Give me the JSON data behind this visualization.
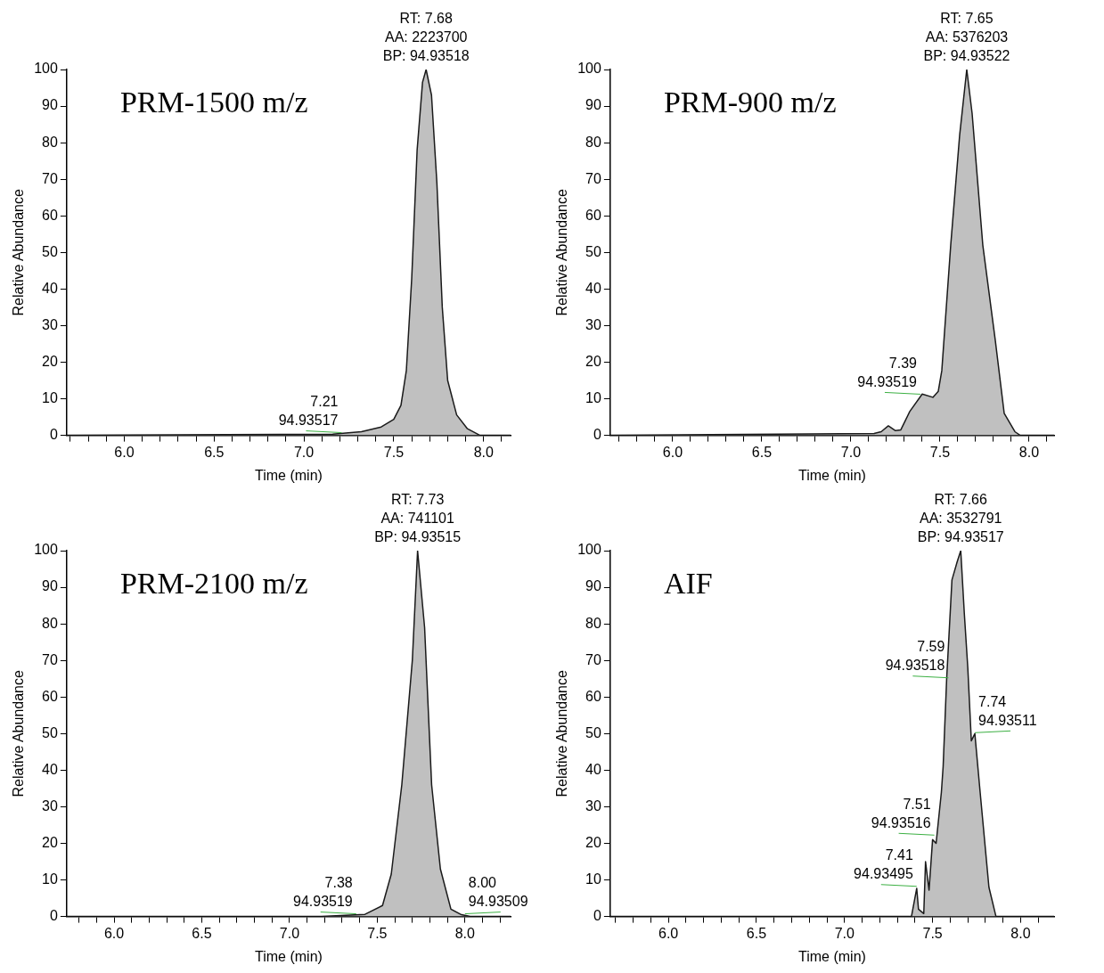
{
  "chart_data": [
    {
      "type": "area",
      "title": "PRM-1500 m/z",
      "xlabel": "Time (min)",
      "ylabel": "Relative Abundance",
      "grid": false,
      "legend": false,
      "marker": "none",
      "xlim": [
        5.68,
        8.15
      ],
      "ylim": [
        0,
        100
      ],
      "xticks": [
        {
          "value": 5.7,
          "label": null
        },
        {
          "value": 5.8,
          "label": null
        },
        {
          "value": 5.9,
          "label": null
        },
        {
          "value": 6,
          "label": "6.0"
        },
        {
          "value": 6.1,
          "label": null
        },
        {
          "value": 6.2,
          "label": null
        },
        {
          "value": 6.3,
          "label": null
        },
        {
          "value": 6.4,
          "label": null
        },
        {
          "value": 6.5,
          "label": "6.5"
        },
        {
          "value": 6.6,
          "label": null
        },
        {
          "value": 6.7,
          "label": null
        },
        {
          "value": 6.8,
          "label": null
        },
        {
          "value": 6.9,
          "label": null
        },
        {
          "value": 7,
          "label": "7.0"
        },
        {
          "value": 7.1,
          "label": null
        },
        {
          "value": 7.2,
          "label": null
        },
        {
          "value": 7.3,
          "label": null
        },
        {
          "value": 7.4,
          "label": null
        },
        {
          "value": 7.5,
          "label": "7.5"
        },
        {
          "value": 7.6,
          "label": null
        },
        {
          "value": 7.7,
          "label": null
        },
        {
          "value": 7.8,
          "label": null
        },
        {
          "value": 7.9,
          "label": null
        },
        {
          "value": 8,
          "label": "8.0"
        },
        {
          "value": 8.1,
          "label": null
        }
      ],
      "yticks": [
        0,
        10,
        20,
        30,
        40,
        50,
        60,
        70,
        80,
        90,
        100
      ],
      "series": [
        {
          "color": "#c0c0c0",
          "x": [
            5.68,
            7.16,
            7.32,
            7.43,
            7.5,
            7.54,
            7.57,
            7.6,
            7.63,
            7.66,
            7.68,
            7.71,
            7.74,
            7.77,
            7.8,
            7.85,
            7.91,
            7.98,
            8.15
          ],
          "values": [
            0,
            0.3,
            1,
            2.3,
            4.4,
            8.2,
            17.7,
            43,
            78,
            96.5,
            100,
            93,
            69,
            35,
            15,
            5.6,
            1.8,
            0,
            0
          ]
        }
      ],
      "annotations": [
        {
          "text": "RT: 7.68\nAA: 2223700\nBP: 94.93518",
          "x": 7.68,
          "y": 100
        },
        {
          "text": "7.21\n94.93517",
          "x": 7.21,
          "y": 0.5
        }
      ]
    },
    {
      "type": "area",
      "title": "PRM-900 m/z",
      "xlabel": "Time (min)",
      "ylabel": "Relative Abundance",
      "grid": false,
      "legend": false,
      "marker": "none",
      "xlim": [
        5.65,
        8.14
      ],
      "ylim": [
        0,
        100
      ],
      "xticks": [
        {
          "value": 5.7,
          "label": null
        },
        {
          "value": 5.8,
          "label": null
        },
        {
          "value": 5.9,
          "label": null
        },
        {
          "value": 6,
          "label": "6.0"
        },
        {
          "value": 6.1,
          "label": null
        },
        {
          "value": 6.2,
          "label": null
        },
        {
          "value": 6.3,
          "label": null
        },
        {
          "value": 6.4,
          "label": null
        },
        {
          "value": 6.5,
          "label": "6.5"
        },
        {
          "value": 6.6,
          "label": null
        },
        {
          "value": 6.7,
          "label": null
        },
        {
          "value": 6.8,
          "label": null
        },
        {
          "value": 6.9,
          "label": null
        },
        {
          "value": 7,
          "label": "7.0"
        },
        {
          "value": 7.1,
          "label": null
        },
        {
          "value": 7.2,
          "label": null
        },
        {
          "value": 7.3,
          "label": null
        },
        {
          "value": 7.4,
          "label": null
        },
        {
          "value": 7.5,
          "label": "7.5"
        },
        {
          "value": 7.6,
          "label": null
        },
        {
          "value": 7.7,
          "label": null
        },
        {
          "value": 7.8,
          "label": null
        },
        {
          "value": 7.9,
          "label": null
        },
        {
          "value": 8,
          "label": "8.0"
        },
        {
          "value": 8.1,
          "label": null
        }
      ],
      "yticks": [
        0,
        10,
        20,
        30,
        40,
        50,
        60,
        70,
        80,
        90,
        100
      ],
      "series": [
        {
          "color": "#c0c0c0",
          "x": [
            5.65,
            7.13,
            7.17,
            7.21,
            7.25,
            7.28,
            7.33,
            7.4,
            7.46,
            7.49,
            7.51,
            7.56,
            7.61,
            7.65,
            7.68,
            7.74,
            7.81,
            7.86,
            7.92,
            7.95,
            8.14
          ],
          "values": [
            0,
            0.5,
            1,
            2.6,
            1.3,
            1.5,
            6.5,
            11.3,
            10.4,
            12,
            17.7,
            52,
            82,
            100,
            88,
            52,
            26,
            6,
            1,
            0,
            0
          ]
        }
      ],
      "annotations": [
        {
          "text": "RT: 7.65\nAA: 5376203\nBP: 94.93522",
          "x": 7.65,
          "y": 100
        },
        {
          "text": "7.39\n94.93519",
          "x": 7.39,
          "y": 11
        }
      ]
    },
    {
      "type": "area",
      "title": "PRM-2100 m/z",
      "xlabel": "Time (min)",
      "ylabel": "Relative Abundance",
      "grid": false,
      "legend": false,
      "marker": "none",
      "xlim": [
        5.73,
        8.26
      ],
      "ylim": [
        0,
        100
      ],
      "xticks": [
        {
          "value": 5.8,
          "label": null
        },
        {
          "value": 5.9,
          "label": null
        },
        {
          "value": 6,
          "label": "6.0"
        },
        {
          "value": 6.1,
          "label": null
        },
        {
          "value": 6.2,
          "label": null
        },
        {
          "value": 6.3,
          "label": null
        },
        {
          "value": 6.4,
          "label": null
        },
        {
          "value": 6.5,
          "label": "6.5"
        },
        {
          "value": 6.6,
          "label": null
        },
        {
          "value": 6.7,
          "label": null
        },
        {
          "value": 6.8,
          "label": null
        },
        {
          "value": 6.9,
          "label": null
        },
        {
          "value": 7,
          "label": "7.0"
        },
        {
          "value": 7.1,
          "label": null
        },
        {
          "value": 7.2,
          "label": null
        },
        {
          "value": 7.3,
          "label": null
        },
        {
          "value": 7.4,
          "label": null
        },
        {
          "value": 7.5,
          "label": "7.5"
        },
        {
          "value": 7.6,
          "label": null
        },
        {
          "value": 7.7,
          "label": null
        },
        {
          "value": 7.8,
          "label": null
        },
        {
          "value": 7.9,
          "label": null
        },
        {
          "value": 8,
          "label": "8.0"
        },
        {
          "value": 8.1,
          "label": null
        },
        {
          "value": 8.2,
          "label": null
        }
      ],
      "yticks": [
        0,
        10,
        20,
        30,
        40,
        50,
        60,
        70,
        80,
        90,
        100
      ],
      "series": [
        {
          "color": "#c0c0c0",
          "x": [
            5.73,
            7.18,
            7.43,
            7.53,
            7.58,
            7.64,
            7.7,
            7.73,
            7.77,
            7.81,
            7.86,
            7.92,
            7.98,
            8.03,
            8.26
          ],
          "values": [
            0,
            0,
            0.6,
            3,
            11.6,
            36,
            70,
            100,
            79,
            36,
            13,
            2,
            0.5,
            0,
            0
          ]
        }
      ],
      "annotations": [
        {
          "text": "RT: 7.73\nAA: 741101\nBP: 94.93515",
          "x": 7.73,
          "y": 100
        },
        {
          "text": "7.38\n94.93519",
          "x": 7.38,
          "y": 0.5
        },
        {
          "text": "8.00\n94.93509",
          "x": 8,
          "y": 0.5
        }
      ]
    },
    {
      "type": "area",
      "title": "AIF",
      "xlabel": "Time (min)",
      "ylabel": "Relative Abundance",
      "grid": false,
      "legend": false,
      "marker": "none",
      "xlim": [
        5.67,
        8.19
      ],
      "ylim": [
        0,
        100
      ],
      "xticks": [
        {
          "value": 5.7,
          "label": null
        },
        {
          "value": 5.8,
          "label": null
        },
        {
          "value": 5.9,
          "label": null
        },
        {
          "value": 6,
          "label": "6.0"
        },
        {
          "value": 6.1,
          "label": null
        },
        {
          "value": 6.2,
          "label": null
        },
        {
          "value": 6.3,
          "label": null
        },
        {
          "value": 6.4,
          "label": null
        },
        {
          "value": 6.5,
          "label": "6.5"
        },
        {
          "value": 6.6,
          "label": null
        },
        {
          "value": 6.7,
          "label": null
        },
        {
          "value": 6.8,
          "label": null
        },
        {
          "value": 6.9,
          "label": null
        },
        {
          "value": 7,
          "label": "7.0"
        },
        {
          "value": 7.1,
          "label": null
        },
        {
          "value": 7.2,
          "label": null
        },
        {
          "value": 7.3,
          "label": null
        },
        {
          "value": 7.4,
          "label": null
        },
        {
          "value": 7.5,
          "label": "7.5"
        },
        {
          "value": 7.6,
          "label": null
        },
        {
          "value": 7.7,
          "label": null
        },
        {
          "value": 7.8,
          "label": null
        },
        {
          "value": 7.9,
          "label": null
        },
        {
          "value": 8,
          "label": "8.0"
        },
        {
          "value": 8.1,
          "label": null
        }
      ],
      "yticks": [
        0,
        10,
        20,
        30,
        40,
        50,
        60,
        70,
        80,
        90,
        100
      ],
      "series": [
        {
          "color": "#c0c0c0",
          "x": [
            5.67,
            7.38,
            7.41,
            7.42,
            7.45,
            7.46,
            7.48,
            7.5,
            7.52,
            7.55,
            7.56,
            7.58,
            7.61,
            7.64,
            7.66,
            7.68,
            7.7,
            7.72,
            7.74,
            7.77,
            7.82,
            7.86,
            8.19
          ],
          "values": [
            0,
            0,
            7.7,
            2,
            0.8,
            15,
            7.2,
            21,
            20,
            34,
            41,
            65,
            92,
            97,
            100,
            83,
            68,
            48,
            50,
            34,
            8,
            0,
            0
          ]
        }
      ],
      "annotations": [
        {
          "text": "RT: 7.66\nAA: 3532791\nBP: 94.93517",
          "x": 7.66,
          "y": 100
        },
        {
          "text": "7.59\n94.93518",
          "x": 7.59,
          "y": 65
        },
        {
          "text": "7.74\n94.93511",
          "x": 7.74,
          "y": 50
        },
        {
          "text": "7.51\n94.93516",
          "x": 7.51,
          "y": 22
        },
        {
          "text": "7.41\n94.93495",
          "x": 7.41,
          "y": 8
        }
      ]
    }
  ]
}
